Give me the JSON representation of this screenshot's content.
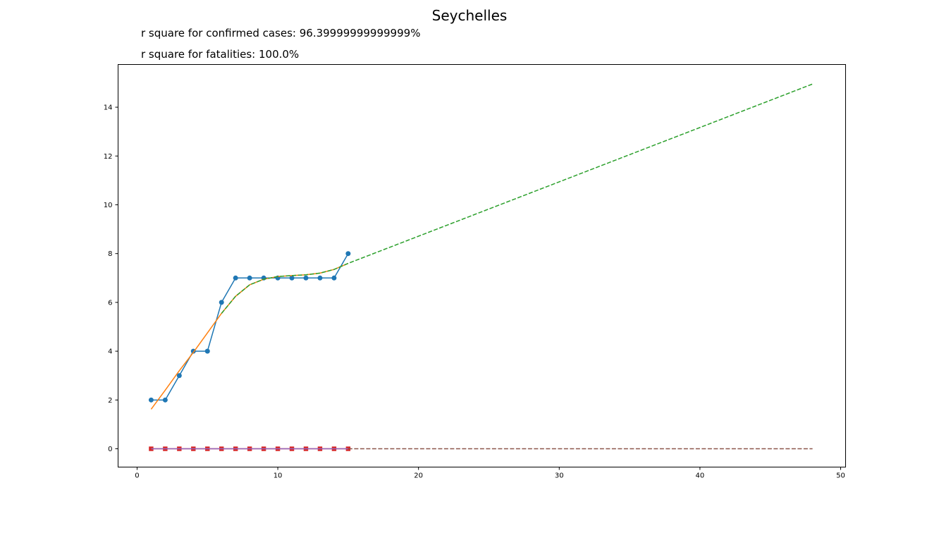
{
  "chart_data": {
    "type": "line",
    "title": "Seychelles",
    "annotations": [
      "r square for confirmed cases: 96.39999999999999%",
      "r square for fatalities: 100.0%"
    ],
    "xlabel": "",
    "ylabel": "",
    "xlim": [
      -1.35,
      50.35
    ],
    "ylim": [
      -0.75,
      15.75
    ],
    "x_ticks": [
      0,
      10,
      20,
      30,
      40,
      50
    ],
    "y_ticks": [
      0,
      2,
      4,
      6,
      8,
      10,
      12,
      14
    ],
    "grid": false,
    "series": [
      {
        "style": "solid-circle-markers",
        "color": "#1f77b4",
        "x": [
          1,
          2,
          3,
          4,
          5,
          6,
          7,
          8,
          9,
          10,
          11,
          12,
          13,
          14,
          15
        ],
        "y": [
          2,
          2,
          3,
          4,
          4,
          6,
          7,
          7,
          7,
          7,
          7,
          7,
          7,
          7,
          8
        ]
      },
      {
        "style": "solid",
        "color": "#ff7f0e",
        "x": [
          1,
          2,
          3,
          4,
          5,
          6,
          7,
          8,
          9,
          10,
          11,
          12,
          13,
          14,
          15
        ],
        "y": [
          1.62,
          2.4,
          3.2,
          3.95,
          4.75,
          5.55,
          6.25,
          6.72,
          6.95,
          7.06,
          7.1,
          7.13,
          7.2,
          7.35,
          7.6
        ]
      },
      {
        "style": "dashed",
        "color": "#2ca02c",
        "x": [
          6,
          7,
          8,
          9,
          10,
          11,
          12,
          13,
          14,
          15,
          48
        ],
        "y": [
          5.55,
          6.25,
          6.72,
          6.95,
          7.06,
          7.1,
          7.13,
          7.2,
          7.35,
          7.6,
          14.95
        ]
      },
      {
        "style": "solid-square-markers",
        "color": "#d62728",
        "x": [
          1,
          2,
          3,
          4,
          5,
          6,
          7,
          8,
          9,
          10,
          11,
          12,
          13,
          14,
          15
        ],
        "y": [
          0,
          0,
          0,
          0,
          0,
          0,
          0,
          0,
          0,
          0,
          0,
          0,
          0,
          0,
          0
        ]
      },
      {
        "style": "solid",
        "color": "#9467bd",
        "x": [
          1,
          15
        ],
        "y": [
          0,
          0
        ]
      },
      {
        "style": "dashed",
        "color": "#8c564b",
        "x": [
          15,
          48
        ],
        "y": [
          0,
          0
        ]
      }
    ]
  }
}
